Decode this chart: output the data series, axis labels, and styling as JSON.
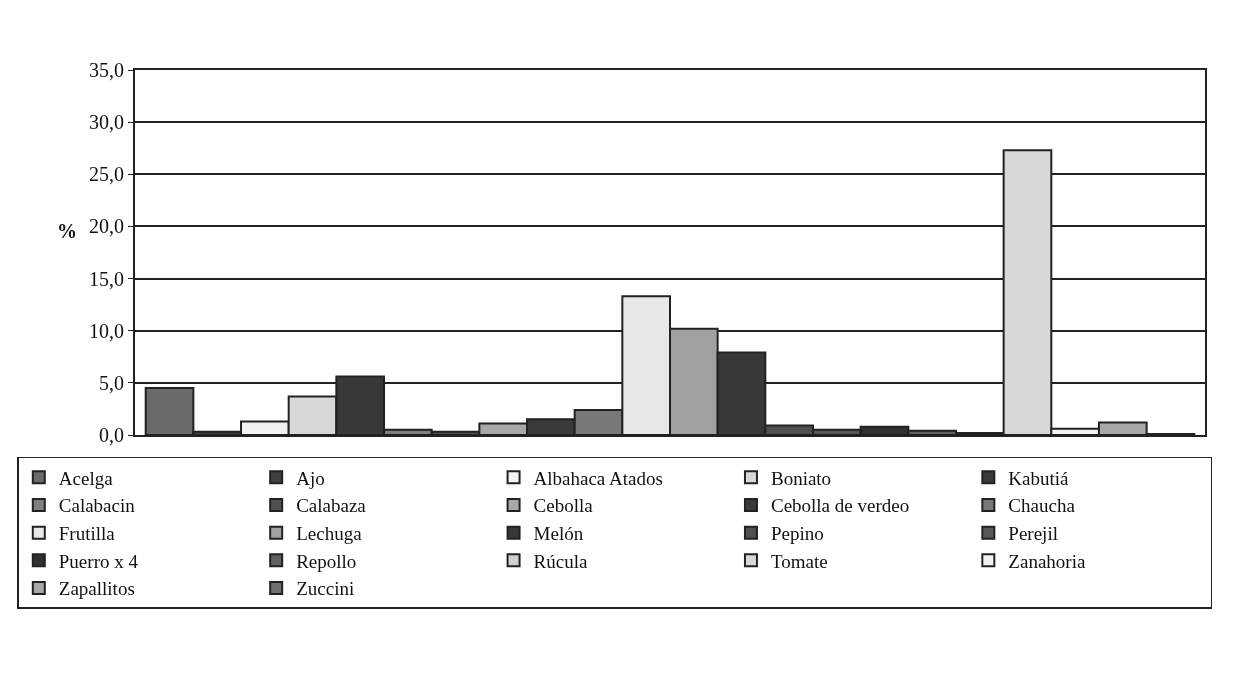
{
  "chart_data": {
    "type": "bar",
    "ylabel": "%",
    "categories": [
      null
    ],
    "series": [
      {
        "name": "Acelga",
        "color": "#6a6a6a",
        "values": [
          4.5
        ]
      },
      {
        "name": "Ajo",
        "color": "#404040",
        "values": [
          0.3
        ]
      },
      {
        "name": "Albahaca Atados",
        "color": "#f2f2f2",
        "values": [
          1.3
        ]
      },
      {
        "name": "Boniato",
        "color": "#d8d8d8",
        "values": [
          3.7
        ]
      },
      {
        "name": "Kabutiá",
        "color": "#383838",
        "values": [
          5.6
        ]
      },
      {
        "name": "Calabacin",
        "color": "#808080",
        "values": [
          0.5
        ]
      },
      {
        "name": "Calabaza",
        "color": "#505050",
        "values": [
          0.3
        ]
      },
      {
        "name": "Cebolla",
        "color": "#a8a8a8",
        "values": [
          1.1
        ]
      },
      {
        "name": "Cebolla de verdeo",
        "color": "#3a3a3a",
        "values": [
          1.5
        ]
      },
      {
        "name": "Chaucha",
        "color": "#787878",
        "values": [
          2.4
        ]
      },
      {
        "name": "Frutilla",
        "color": "#e8e8e8",
        "values": [
          13.3
        ]
      },
      {
        "name": "Lechuga",
        "color": "#a0a0a0",
        "values": [
          10.2
        ]
      },
      {
        "name": "Melón",
        "color": "#383838",
        "values": [
          7.9
        ]
      },
      {
        "name": "Pepino",
        "color": "#505050",
        "values": [
          0.9
        ]
      },
      {
        "name": "Perejil",
        "color": "#585858",
        "values": [
          0.5
        ]
      },
      {
        "name": "Puerro x 4",
        "color": "#303030",
        "values": [
          0.8
        ]
      },
      {
        "name": "Repollo",
        "color": "#606060",
        "values": [
          0.4
        ]
      },
      {
        "name": "Rúcula",
        "color": "#d0d0d0",
        "values": [
          0.2
        ]
      },
      {
        "name": "Tomate",
        "color": "#d8d8d8",
        "values": [
          27.3
        ]
      },
      {
        "name": "Zanahoria",
        "color": "#f2f2f2",
        "values": [
          0.6
        ]
      },
      {
        "name": "Zapallitos",
        "color": "#a8a8a8",
        "values": [
          1.2
        ]
      },
      {
        "name": "Zuccini",
        "color": "#707070",
        "values": [
          0.1
        ]
      }
    ],
    "ylim": [
      0,
      35
    ],
    "yticks": [
      {
        "value": 0,
        "label": "0,0"
      },
      {
        "value": 5,
        "label": "5,0"
      },
      {
        "value": 10,
        "label": "10,0"
      },
      {
        "value": 15,
        "label": "15,0"
      },
      {
        "value": 20,
        "label": "20,0"
      },
      {
        "value": 25,
        "label": "25,0"
      },
      {
        "value": 30,
        "label": "30,0"
      },
      {
        "value": 35,
        "label": "35,0"
      }
    ],
    "grid": "y",
    "legend": "bottom"
  }
}
